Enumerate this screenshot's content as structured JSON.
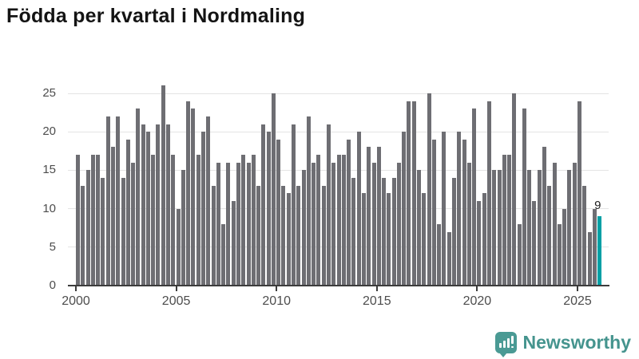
{
  "title": "Födda per kvartal i Nordmaling",
  "annotation": {
    "last_value_label": "9"
  },
  "footer": {
    "brand": "Newsworthy",
    "brand_color": "#45948e"
  },
  "chart_data": {
    "type": "bar",
    "title": "Födda per kvartal i Nordmaling",
    "frequency": "quarterly",
    "x_start": "2000-Q1",
    "xlabel": "",
    "ylabel": "",
    "ylim": [
      0,
      25
    ],
    "yticks": [
      0,
      5,
      10,
      15,
      20,
      25
    ],
    "xticks": [
      "2000",
      "2005",
      "2010",
      "2015",
      "2020",
      "2025"
    ],
    "grid": "horizontal",
    "bar_color": "#6e6e73",
    "highlight_color": "#00a0a5",
    "highlight_last_bar": true,
    "values": [
      17,
      13,
      15,
      17,
      17,
      14,
      22,
      18,
      22,
      14,
      19,
      16,
      23,
      21,
      20,
      17,
      21,
      26,
      21,
      17,
      10,
      15,
      24,
      23,
      17,
      20,
      22,
      13,
      16,
      8,
      16,
      11,
      16,
      17,
      16,
      17,
      13,
      21,
      20,
      25,
      19,
      13,
      12,
      21,
      13,
      15,
      22,
      16,
      17,
      13,
      21,
      16,
      17,
      17,
      19,
      14,
      20,
      12,
      18,
      16,
      18,
      14,
      12,
      14,
      16,
      20,
      24,
      24,
      15,
      12,
      25,
      19,
      8,
      20,
      7,
      14,
      20,
      19,
      16,
      23,
      11,
      12,
      24,
      15,
      15,
      17,
      17,
      25,
      8,
      23,
      15,
      11,
      15,
      18,
      13,
      16,
      8,
      10,
      15,
      16,
      24,
      13,
      7,
      10,
      9
    ]
  }
}
